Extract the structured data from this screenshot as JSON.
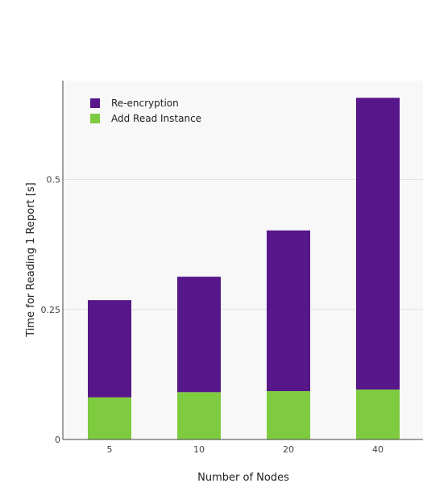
{
  "chart_data": {
    "type": "bar",
    "stacked": true,
    "categories": [
      "5",
      "10",
      "20",
      "40"
    ],
    "series": [
      {
        "name": "Add Read Instance",
        "color": "#7ecb40",
        "values": [
          0.081,
          0.091,
          0.093,
          0.096
        ]
      },
      {
        "name": "Re-encryption",
        "color": "#57168a",
        "values": [
          0.187,
          0.222,
          0.309,
          0.561
        ]
      }
    ],
    "legend_order": [
      "Re-encryption",
      "Add Read Instance"
    ],
    "xlabel": "Number of Nodes",
    "ylabel": "Time for Reading 1 Report [s]",
    "yticks": [
      0,
      0.25,
      0.5
    ],
    "ytick_labels": [
      "0",
      "0.25",
      "0.5"
    ],
    "ylim": [
      0,
      0.69
    ],
    "grid": true,
    "legend_position": "top-left",
    "background_color": "#f8f8f8",
    "grid_color": "#e2e2e2"
  }
}
